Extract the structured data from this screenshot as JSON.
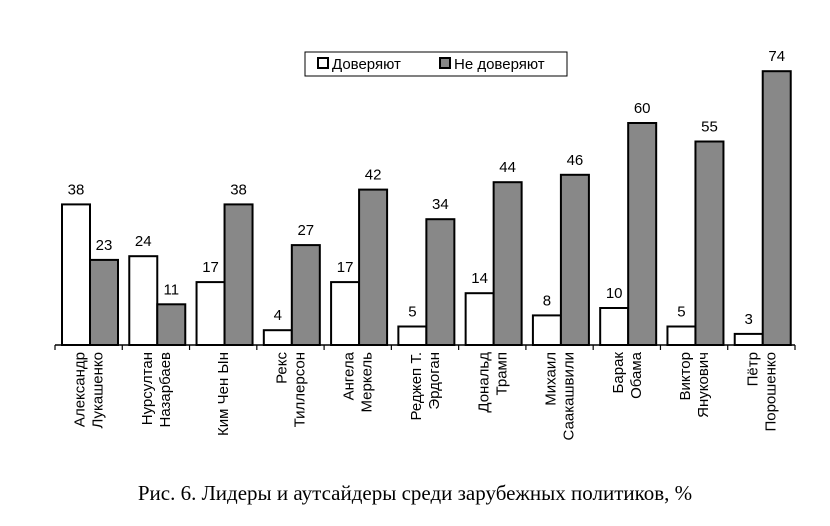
{
  "chart_data": {
    "type": "bar",
    "title": "",
    "xlabel": "",
    "ylabel": "",
    "ylim": [
      0,
      80
    ],
    "grid": false,
    "legend_position": "top-right",
    "categories": [
      [
        "Александр",
        "Лукашенко"
      ],
      [
        "Нурсултан",
        "Назарбаев"
      ],
      [
        "Ким Чен Ын"
      ],
      [
        "Рекс",
        "Тиллерсон"
      ],
      [
        "Ангела",
        "Меркель"
      ],
      [
        "Реджеп Т.",
        "Эрдоган"
      ],
      [
        "Дональд",
        "Трамп"
      ],
      [
        "Михаил",
        "Саакашвили"
      ],
      [
        "Барак",
        "Обама"
      ],
      [
        "Виктор",
        "Янукович"
      ],
      [
        "Пётр",
        "Порошенко"
      ]
    ],
    "series": [
      {
        "name": "Доверяют",
        "color": "#ffffff",
        "values": [
          38,
          24,
          17,
          4,
          17,
          5,
          14,
          8,
          10,
          5,
          3
        ]
      },
      {
        "name": "Не доверяют",
        "color": "#888888",
        "values": [
          23,
          11,
          38,
          27,
          42,
          34,
          44,
          46,
          60,
          55,
          74
        ]
      }
    ]
  },
  "caption": "Рис. 6. Лидеры и аутсайдеры среди зарубежных политиков, %"
}
